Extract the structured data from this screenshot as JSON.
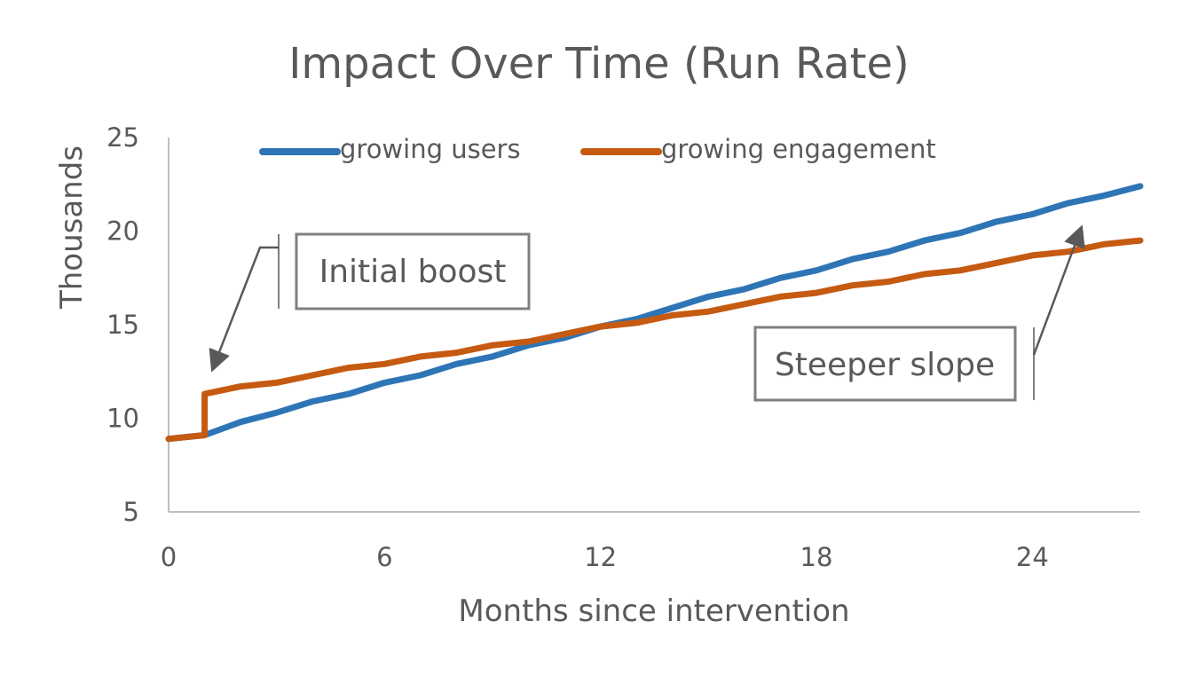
{
  "chart_data": {
    "type": "line",
    "title": "Impact Over Time (Run Rate)",
    "xlabel": "Months since intervention",
    "ylabel": "Thousands",
    "xlim": [
      0,
      27
    ],
    "ylim": [
      5,
      25
    ],
    "x_ticks": [
      0,
      6,
      12,
      18,
      24
    ],
    "y_ticks": [
      5,
      10,
      15,
      20,
      25
    ],
    "grid": false,
    "legend_position": "top",
    "series": [
      {
        "name": "growing users",
        "color": "#2E75B6",
        "x": [
          0,
          1,
          2,
          3,
          4,
          5,
          6,
          7,
          8,
          9,
          10,
          11,
          12,
          13,
          14,
          15,
          16,
          17,
          18,
          19,
          20,
          21,
          22,
          23,
          24,
          25,
          26,
          27
        ],
        "y": [
          8.9,
          9.1,
          9.8,
          10.3,
          10.9,
          11.3,
          11.9,
          12.3,
          12.9,
          13.3,
          13.9,
          14.3,
          14.9,
          15.3,
          15.9,
          16.5,
          16.9,
          17.5,
          17.9,
          18.5,
          18.9,
          19.5,
          19.9,
          20.5,
          20.9,
          21.5,
          21.9,
          22.4
        ]
      },
      {
        "name": "growing engagement",
        "color": "#C55A11",
        "x": [
          0,
          1,
          1,
          2,
          3,
          4,
          5,
          6,
          7,
          8,
          9,
          10,
          11,
          12,
          13,
          14,
          15,
          16,
          17,
          18,
          19,
          20,
          21,
          22,
          23,
          24,
          25,
          26,
          27
        ],
        "y": [
          8.9,
          9.1,
          11.3,
          11.7,
          11.9,
          12.3,
          12.7,
          12.9,
          13.3,
          13.5,
          13.9,
          14.1,
          14.5,
          14.9,
          15.1,
          15.5,
          15.7,
          16.1,
          16.5,
          16.7,
          17.1,
          17.3,
          17.7,
          17.9,
          18.3,
          18.7,
          18.9,
          19.3,
          19.5
        ]
      }
    ],
    "annotations": [
      {
        "text": "Initial boost"
      },
      {
        "text": "Steeper slope"
      }
    ]
  }
}
